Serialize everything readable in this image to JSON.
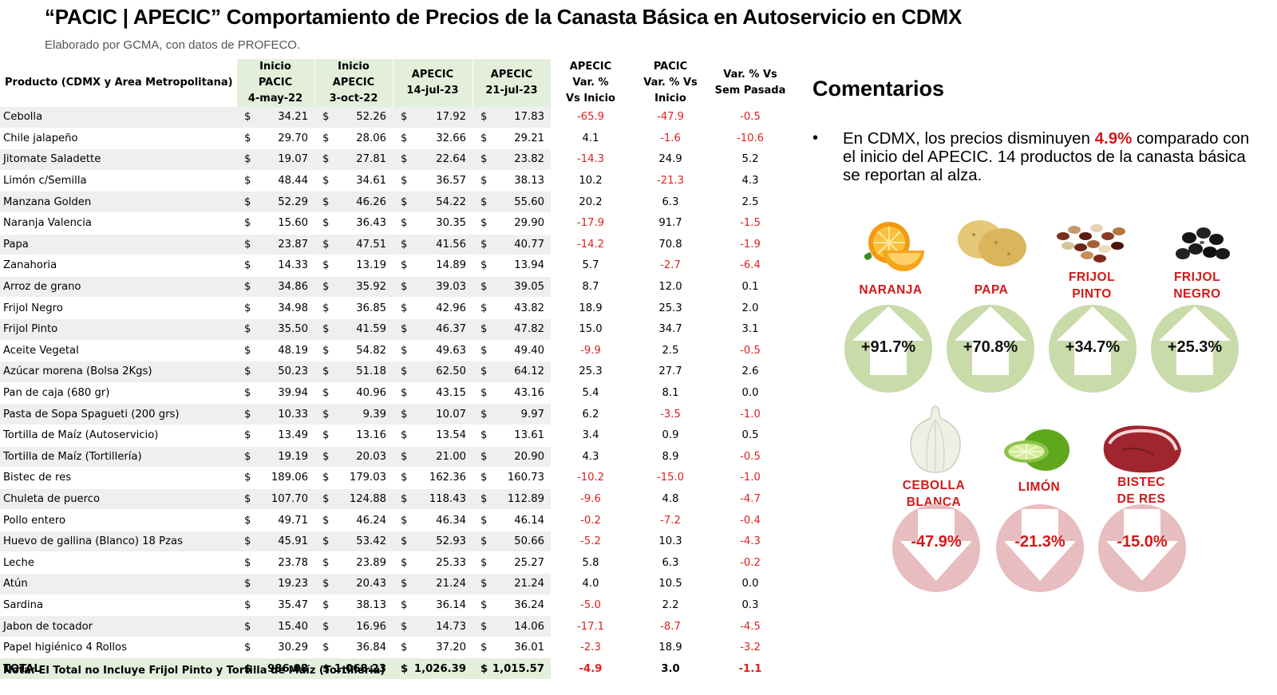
{
  "title": "“PACIC | APECIC” Comportamiento de Precios de la Canasta Básica en Autoservicio en CDMX",
  "subtitle": "Elaborado por GCMA, con datos de PROFECO.",
  "table": {
    "headers": {
      "product": "Producto (CDMX y Area Metropolitana)",
      "h1": [
        "Inicio",
        "PACIC",
        "4-may-22"
      ],
      "h2": [
        "Inicio",
        "APECIC",
        "3-oct-22"
      ],
      "h3": [
        "APECIC",
        "14-jul-23"
      ],
      "h4": [
        "APECIC",
        "21-jul-23"
      ],
      "h5": [
        "APECIC",
        "Var. %",
        "Vs  Inicio"
      ],
      "h6": [
        "PACIC",
        "Var. % Vs",
        "Inicio"
      ],
      "h7": [
        "Var. % Vs",
        "Sem Pasada"
      ]
    },
    "currency": "$",
    "rows": [
      [
        "Cebolla",
        "34.21",
        "52.26",
        "17.92",
        "17.83",
        "-65.9",
        "-47.9",
        "-0.5"
      ],
      [
        "Chile jalapeño",
        "29.70",
        "28.06",
        "32.66",
        "29.21",
        "4.1",
        "-1.6",
        "-10.6"
      ],
      [
        "Jitomate Saladette",
        "19.07",
        "27.81",
        "22.64",
        "23.82",
        "-14.3",
        "24.9",
        "5.2"
      ],
      [
        "Limón c/Semilla",
        "48.44",
        "34.61",
        "36.57",
        "38.13",
        "10.2",
        "-21.3",
        "4.3"
      ],
      [
        "Manzana Golden",
        "52.29",
        "46.26",
        "54.22",
        "55.60",
        "20.2",
        "6.3",
        "2.5"
      ],
      [
        "Naranja Valencia",
        "15.60",
        "36.43",
        "30.35",
        "29.90",
        "-17.9",
        "91.7",
        "-1.5"
      ],
      [
        "Papa",
        "23.87",
        "47.51",
        "41.56",
        "40.77",
        "-14.2",
        "70.8",
        "-1.9"
      ],
      [
        "Zanahoria",
        "14.33",
        "13.19",
        "14.89",
        "13.94",
        "5.7",
        "-2.7",
        "-6.4"
      ],
      [
        "Arroz de grano",
        "34.86",
        "35.92",
        "39.03",
        "39.05",
        "8.7",
        "12.0",
        "0.1"
      ],
      [
        "Frijol Negro",
        "34.98",
        "36.85",
        "42.96",
        "43.82",
        "18.9",
        "25.3",
        "2.0"
      ],
      [
        "Frijol Pinto",
        "35.50",
        "41.59",
        "46.37",
        "47.82",
        "15.0",
        "34.7",
        "3.1"
      ],
      [
        "Aceite Vegetal",
        "48.19",
        "54.82",
        "49.63",
        "49.40",
        "-9.9",
        "2.5",
        "-0.5"
      ],
      [
        "Azúcar morena (Bolsa 2Kgs)",
        "50.23",
        "51.18",
        "62.50",
        "64.12",
        "25.3",
        "27.7",
        "2.6"
      ],
      [
        "Pan de caja (680 gr)",
        "39.94",
        "40.96",
        "43.15",
        "43.16",
        "5.4",
        "8.1",
        "0.0"
      ],
      [
        "Pasta de Sopa Spagueti (200 grs)",
        "10.33",
        "9.39",
        "10.07",
        "9.97",
        "6.2",
        "-3.5",
        "-1.0"
      ],
      [
        "Tortilla de Maíz (Autoservicio)",
        "13.49",
        "13.16",
        "13.54",
        "13.61",
        "3.4",
        "0.9",
        "0.5"
      ],
      [
        "Tortilla de Maíz (Tortillería)",
        "19.19",
        "20.03",
        "21.00",
        "20.90",
        "4.3",
        "8.9",
        "-0.5"
      ],
      [
        "Bistec de res",
        "189.06",
        "179.03",
        "162.36",
        "160.73",
        "-10.2",
        "-15.0",
        "-1.0"
      ],
      [
        "Chuleta de puerco",
        "107.70",
        "124.88",
        "118.43",
        "112.89",
        "-9.6",
        "4.8",
        "-4.7"
      ],
      [
        "Pollo entero",
        "49.71",
        "46.24",
        "46.34",
        "46.14",
        "-0.2",
        "-7.2",
        "-0.4"
      ],
      [
        "Huevo de gallina (Blanco) 18 Pzas",
        "45.91",
        "53.42",
        "52.93",
        "50.66",
        "-5.2",
        "10.3",
        "-4.3"
      ],
      [
        "Leche",
        "23.78",
        "23.89",
        "25.33",
        "25.27",
        "5.8",
        "6.3",
        "-0.2"
      ],
      [
        "Atún",
        "19.23",
        "20.43",
        "21.24",
        "21.24",
        "4.0",
        "10.5",
        "0.0"
      ],
      [
        "Sardina",
        "35.47",
        "38.13",
        "36.14",
        "36.24",
        "-5.0",
        "2.2",
        "0.3"
      ],
      [
        "Jabon de tocador",
        "15.40",
        "16.96",
        "14.73",
        "14.06",
        "-17.1",
        "-8.7",
        "-4.5"
      ],
      [
        "Papel higiénico 4 Rollos",
        "30.29",
        "36.84",
        "37.20",
        "36.01",
        "-2.3",
        "18.9",
        "-3.2"
      ]
    ],
    "total": [
      "TOTAL",
      "986.08",
      "1,068.23",
      "1,026.39",
      "1,015.57",
      "-4.9",
      "3.0",
      "-1.1"
    ]
  },
  "note": "Nota: El Total no Incluye Frijol Pinto y Tortilla de Maíz (Tortilleria)",
  "comments": {
    "title": "Comentarios",
    "bullet": "•",
    "text_before": "En CDMX, los precios disminuyen ",
    "highlight": "4.9%",
    "text_after": " comparado con el inicio del APECIC. 14 productos de la canasta básica se reportan al alza."
  },
  "increases": [
    {
      "label_lines": [
        "NARANJA"
      ],
      "pct": "+91.7%",
      "icon": "orange-icon"
    },
    {
      "label_lines": [
        "PAPA"
      ],
      "pct": "+70.8%",
      "icon": "potato-icon"
    },
    {
      "label_lines": [
        "FRIJOL",
        "PINTO"
      ],
      "pct": "+34.7%",
      "icon": "pinto-bean-icon"
    },
    {
      "label_lines": [
        "FRIJOL",
        "NEGRO"
      ],
      "pct": "+25.3%",
      "icon": "black-bean-icon"
    }
  ],
  "decreases": [
    {
      "label_lines": [
        "CEBOLLA",
        "BLANCA"
      ],
      "pct": "-47.9%",
      "icon": "onion-icon"
    },
    {
      "label_lines": [
        "LIMÓN"
      ],
      "pct": "-21.3%",
      "icon": "lime-icon"
    },
    {
      "label_lines": [
        "BISTEC",
        "DE RES"
      ],
      "pct": "-15.0%",
      "icon": "steak-icon"
    }
  ],
  "colors": {
    "negative": "#e02020",
    "highlight": "#d41818",
    "up_circle": "#c8dba9",
    "down_circle": "#e8bdbf",
    "header_green": "#e3efdb"
  }
}
